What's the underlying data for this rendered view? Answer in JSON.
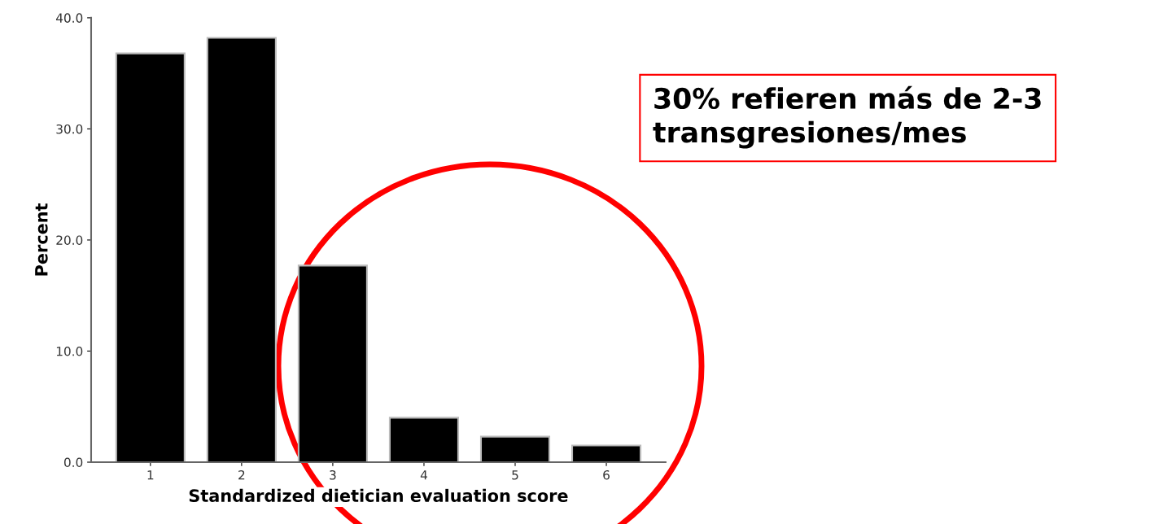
{
  "chart_data": {
    "type": "bar",
    "xlabel": "Standardized dietician evaluation score",
    "ylabel": "Percent",
    "categories": [
      "1",
      "2",
      "3",
      "4",
      "5",
      "6"
    ],
    "values": [
      36.8,
      38.2,
      17.7,
      4.0,
      2.3,
      1.5
    ],
    "color": "#000000",
    "ylim": [
      0,
      40
    ],
    "yticks": [
      {
        "value": 0,
        "label": "0.0"
      },
      {
        "value": 10,
        "label": "10.0"
      },
      {
        "value": 20,
        "label": "20.0"
      },
      {
        "value": 30,
        "label": "30.0"
      },
      {
        "value": 40,
        "label": "40.0"
      }
    ],
    "grid": false,
    "annotations": [
      "30% refieren más de 2-3 transgresiones/mes"
    ]
  }
}
